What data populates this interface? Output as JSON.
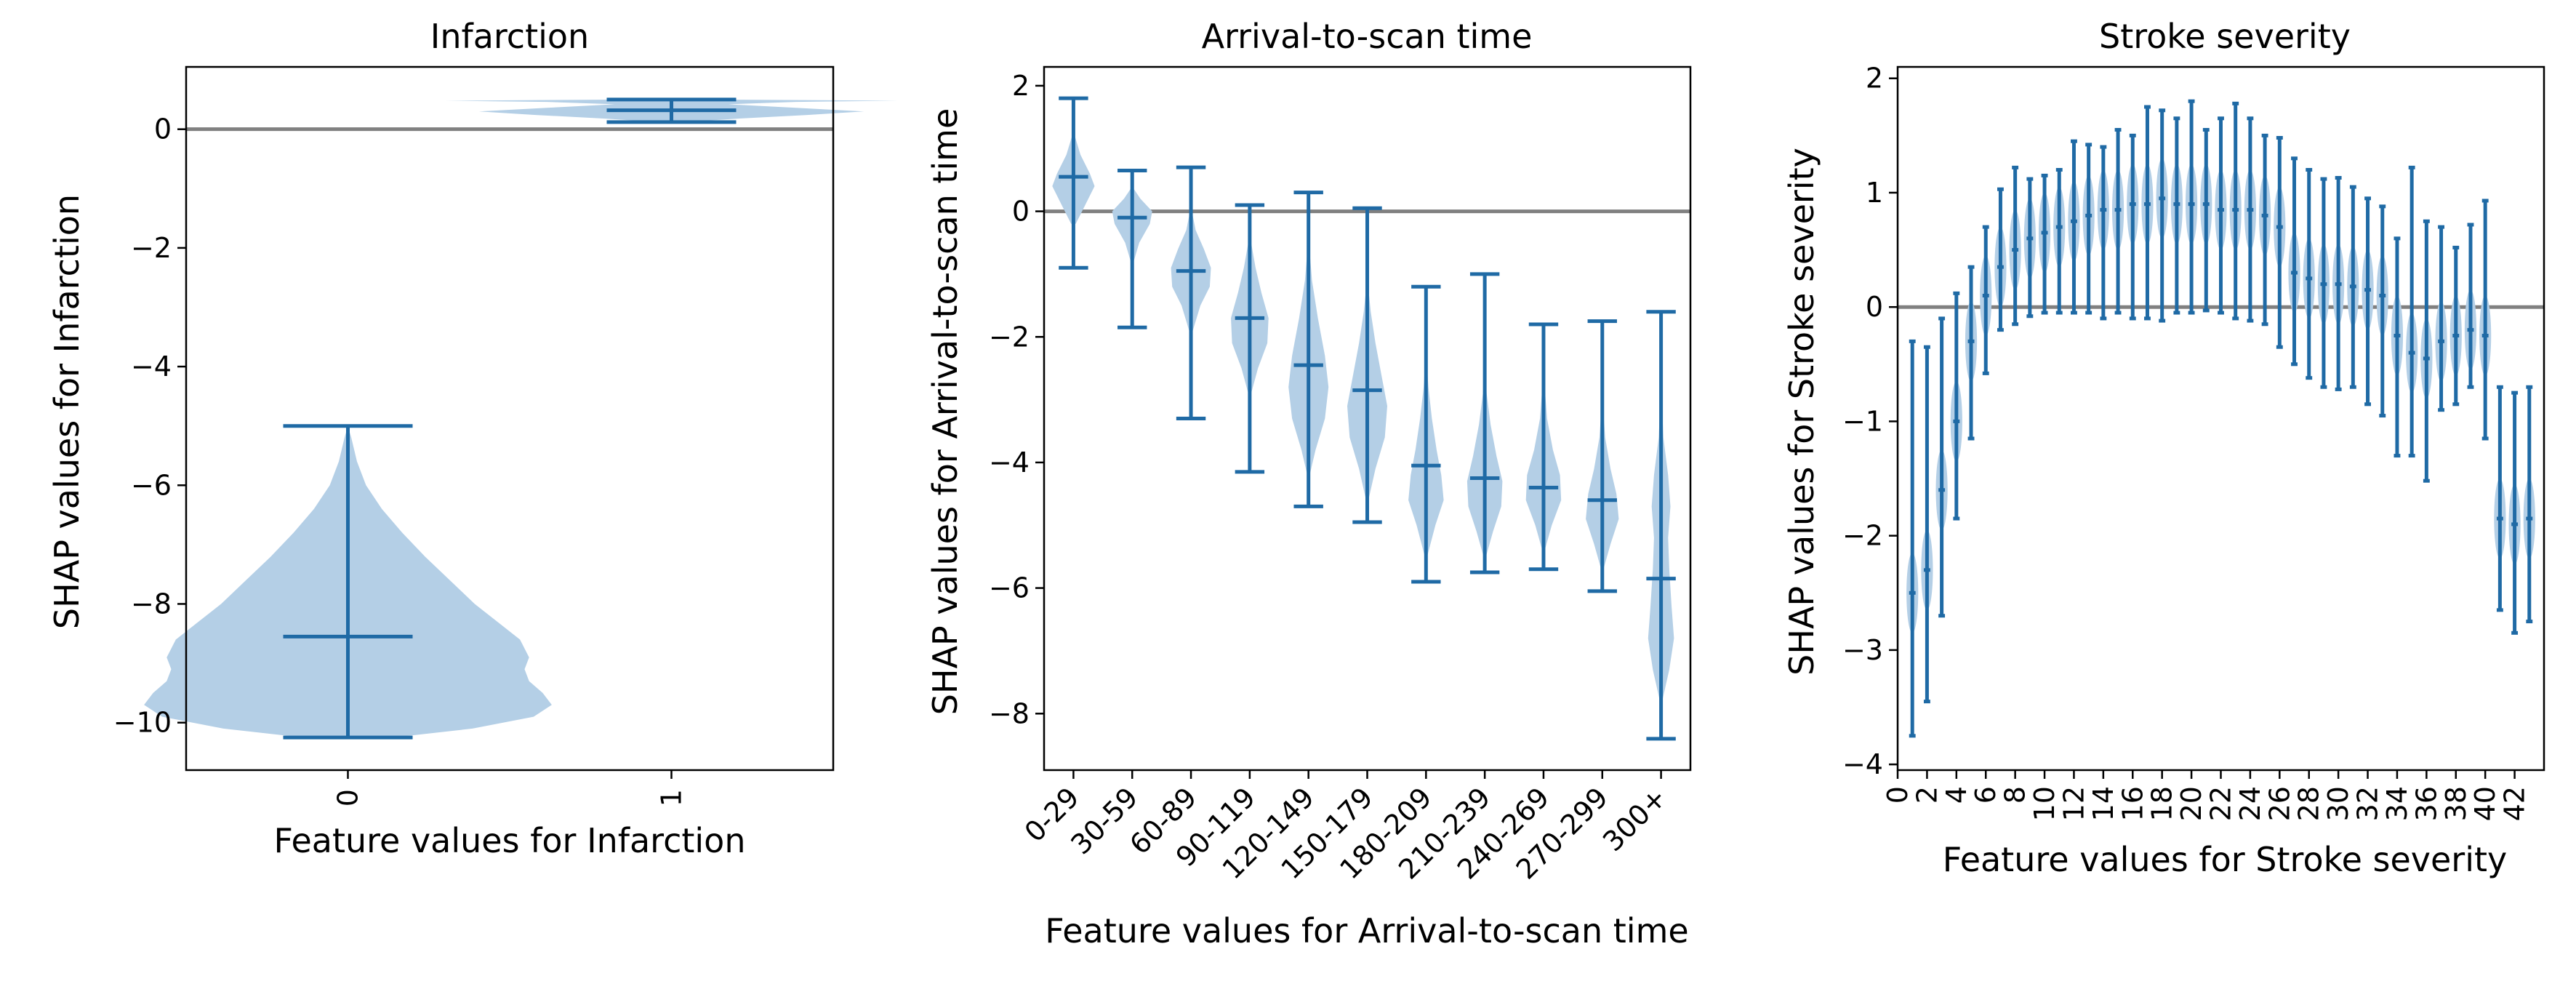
{
  "chart_data": [
    {
      "type": "violin",
      "title": "Infarction",
      "xlabel": "Feature values for Infarction",
      "ylabel": "SHAP values for Infarction",
      "x_categories": [
        "0",
        "1"
      ],
      "ylim": [
        -10.8,
        1.05
      ],
      "yticks": [
        -10,
        -8,
        -6,
        -4,
        -2,
        0
      ],
      "zero_line": true,
      "colors": {
        "body": "#b4cfe6",
        "line": "#1f6aa5",
        "zero": "#808080"
      },
      "violins": [
        {
          "category": "0",
          "min": -10.25,
          "max": -5.0,
          "median": -8.55,
          "profile": [
            [
              -10.25,
              0.2
            ],
            [
              -10.1,
              0.55
            ],
            [
              -9.9,
              0.82
            ],
            [
              -9.7,
              0.9
            ],
            [
              -9.5,
              0.86
            ],
            [
              -9.3,
              0.8
            ],
            [
              -9.1,
              0.78
            ],
            [
              -8.9,
              0.8
            ],
            [
              -8.6,
              0.76
            ],
            [
              -8.3,
              0.66
            ],
            [
              -8.0,
              0.56
            ],
            [
              -7.6,
              0.45
            ],
            [
              -7.2,
              0.34
            ],
            [
              -6.8,
              0.24
            ],
            [
              -6.4,
              0.15
            ],
            [
              -6.0,
              0.08
            ],
            [
              -5.6,
              0.04
            ],
            [
              -5.2,
              0.015
            ],
            [
              -5.0,
              0.0
            ]
          ]
        },
        {
          "category": "1",
          "min": 0.12,
          "max": 0.5,
          "median": 0.32,
          "profile": [
            [
              0.12,
              0.05
            ],
            [
              0.18,
              0.3
            ],
            [
              0.24,
              0.6
            ],
            [
              0.3,
              0.85
            ],
            [
              0.36,
              0.55
            ],
            [
              0.42,
              0.25
            ],
            [
              0.46,
              0.55
            ],
            [
              0.48,
              1.0
            ],
            [
              0.5,
              0.2
            ]
          ]
        }
      ]
    },
    {
      "type": "violin",
      "title": "Arrival-to-scan time",
      "xlabel": "Feature values for Arrival-to-scan time",
      "ylabel": "SHAP values for Arrival-to-scan time",
      "x_categories": [
        "0-29",
        "30-59",
        "60-89",
        "90-119",
        "120-149",
        "150-179",
        "180-209",
        "210-239",
        "240-269",
        "270-299",
        "300+"
      ],
      "ylim": [
        -8.9,
        2.3
      ],
      "yticks": [
        -8,
        -6,
        -4,
        -2,
        0,
        2
      ],
      "zero_line": true,
      "colors": {
        "body": "#b4cfe6",
        "line": "#1f6aa5",
        "zero": "#808080"
      },
      "violins": [
        {
          "category": "0-29",
          "min": -0.9,
          "max": 1.8,
          "median": 0.55,
          "profile": [
            [
              -0.2,
              0.1
            ],
            [
              0.1,
              0.5
            ],
            [
              0.4,
              0.9
            ],
            [
              0.6,
              0.7
            ],
            [
              0.9,
              0.3
            ],
            [
              1.2,
              0.06
            ]
          ]
        },
        {
          "category": "30-59",
          "min": -1.85,
          "max": 0.65,
          "median": -0.1,
          "profile": [
            [
              -0.8,
              0.06
            ],
            [
              -0.5,
              0.3
            ],
            [
              -0.2,
              0.75
            ],
            [
              0.0,
              0.85
            ],
            [
              0.2,
              0.35
            ],
            [
              0.35,
              0.08
            ]
          ]
        },
        {
          "category": "60-89",
          "min": -3.3,
          "max": 0.7,
          "median": -0.95,
          "profile": [
            [
              -1.9,
              0.08
            ],
            [
              -1.5,
              0.4
            ],
            [
              -1.2,
              0.8
            ],
            [
              -0.9,
              0.85
            ],
            [
              -0.6,
              0.55
            ],
            [
              -0.3,
              0.2
            ],
            [
              0.0,
              0.04
            ]
          ]
        },
        {
          "category": "90-119",
          "min": -4.15,
          "max": 0.1,
          "median": -1.7,
          "profile": [
            [
              -2.9,
              0.06
            ],
            [
              -2.5,
              0.35
            ],
            [
              -2.1,
              0.75
            ],
            [
              -1.7,
              0.8
            ],
            [
              -1.3,
              0.5
            ],
            [
              -0.9,
              0.25
            ],
            [
              -0.5,
              0.06
            ]
          ]
        },
        {
          "category": "120-149",
          "min": -4.7,
          "max": 0.3,
          "median": -2.45,
          "profile": [
            [
              -4.2,
              0.05
            ],
            [
              -3.8,
              0.3
            ],
            [
              -3.3,
              0.7
            ],
            [
              -2.8,
              0.85
            ],
            [
              -2.3,
              0.7
            ],
            [
              -1.7,
              0.4
            ],
            [
              -1.1,
              0.15
            ],
            [
              -0.6,
              0.04
            ]
          ]
        },
        {
          "category": "150-179",
          "min": -4.95,
          "max": 0.05,
          "median": -2.85,
          "profile": [
            [
              -4.6,
              0.05
            ],
            [
              -4.1,
              0.35
            ],
            [
              -3.6,
              0.75
            ],
            [
              -3.1,
              0.85
            ],
            [
              -2.6,
              0.6
            ],
            [
              -2.1,
              0.35
            ],
            [
              -1.6,
              0.15
            ],
            [
              -1.2,
              0.04
            ]
          ]
        },
        {
          "category": "180-209",
          "min": -5.9,
          "max": -1.2,
          "median": -4.05,
          "profile": [
            [
              -5.5,
              0.05
            ],
            [
              -5.0,
              0.4
            ],
            [
              -4.6,
              0.75
            ],
            [
              -4.2,
              0.65
            ],
            [
              -3.8,
              0.45
            ],
            [
              -3.3,
              0.25
            ],
            [
              -2.8,
              0.1
            ],
            [
              -2.4,
              0.03
            ]
          ]
        },
        {
          "category": "210-239",
          "min": -5.75,
          "max": -1.0,
          "median": -4.25,
          "profile": [
            [
              -5.5,
              0.05
            ],
            [
              -5.1,
              0.35
            ],
            [
              -4.7,
              0.7
            ],
            [
              -4.3,
              0.75
            ],
            [
              -3.9,
              0.5
            ],
            [
              -3.4,
              0.25
            ],
            [
              -2.9,
              0.08
            ],
            [
              -2.5,
              0.02
            ]
          ]
        },
        {
          "category": "240-269",
          "min": -5.7,
          "max": -1.8,
          "median": -4.4,
          "profile": [
            [
              -5.4,
              0.05
            ],
            [
              -5.0,
              0.35
            ],
            [
              -4.6,
              0.75
            ],
            [
              -4.2,
              0.7
            ],
            [
              -3.8,
              0.4
            ],
            [
              -3.3,
              0.15
            ],
            [
              -2.8,
              0.05
            ]
          ]
        },
        {
          "category": "270-299",
          "min": -6.05,
          "max": -1.75,
          "median": -4.6,
          "profile": [
            [
              -5.7,
              0.05
            ],
            [
              -5.3,
              0.35
            ],
            [
              -4.9,
              0.7
            ],
            [
              -4.5,
              0.6
            ],
            [
              -4.1,
              0.35
            ],
            [
              -3.6,
              0.12
            ],
            [
              -3.1,
              0.03
            ]
          ]
        },
        {
          "category": "300+",
          "min": -8.4,
          "max": -1.6,
          "median": -5.85,
          "profile": [
            [
              -7.8,
              0.05
            ],
            [
              -7.3,
              0.35
            ],
            [
              -6.8,
              0.55
            ],
            [
              -6.3,
              0.45
            ],
            [
              -5.7,
              0.35
            ],
            [
              -5.2,
              0.3
            ],
            [
              -4.7,
              0.4
            ],
            [
              -4.2,
              0.3
            ],
            [
              -3.6,
              0.1
            ],
            [
              -3.0,
              0.03
            ]
          ]
        }
      ]
    },
    {
      "type": "violin",
      "title": "Stroke severity",
      "xlabel": "Feature values for Stroke severity",
      "ylabel": "SHAP values for Stroke severity",
      "x_positions": [
        0,
        1,
        2,
        3,
        4,
        5,
        6,
        7,
        8,
        9,
        10,
        11,
        12,
        13,
        14,
        15,
        16,
        17,
        18,
        19,
        20,
        21,
        22,
        23,
        24,
        25,
        26,
        27,
        28,
        29,
        30,
        31,
        32,
        33,
        34,
        35,
        36,
        37,
        38,
        39,
        40,
        41,
        42,
        43
      ],
      "xticks": [
        "0",
        "2",
        "4",
        "6",
        "8",
        "10",
        "12",
        "14",
        "16",
        "18",
        "20",
        "22",
        "24",
        "26",
        "28",
        "30",
        "32",
        "34",
        "36",
        "38",
        "40",
        "42"
      ],
      "xlim": [
        0,
        44
      ],
      "ylim": [
        -4.05,
        2.1
      ],
      "yticks": [
        -4,
        -3,
        -2,
        -1,
        0,
        1,
        2
      ],
      "zero_line": true,
      "colors": {
        "body": "#b4cfe6",
        "line": "#1f6aa5",
        "zero": "#808080"
      },
      "violins": [
        {
          "x": 1,
          "min": -3.75,
          "max": -0.3,
          "median": -2.5
        },
        {
          "x": 2,
          "min": -3.45,
          "max": -0.35,
          "median": -2.3
        },
        {
          "x": 3,
          "min": -2.7,
          "max": -0.1,
          "median": -1.6
        },
        {
          "x": 4,
          "min": -1.85,
          "max": 0.12,
          "median": -1.0
        },
        {
          "x": 5,
          "min": -1.15,
          "max": 0.35,
          "median": -0.3
        },
        {
          "x": 6,
          "min": -0.58,
          "max": 0.7,
          "median": 0.1
        },
        {
          "x": 7,
          "min": -0.2,
          "max": 1.03,
          "median": 0.35
        },
        {
          "x": 8,
          "min": -0.15,
          "max": 1.22,
          "median": 0.5
        },
        {
          "x": 9,
          "min": -0.08,
          "max": 1.12,
          "median": 0.6
        },
        {
          "x": 10,
          "min": -0.05,
          "max": 1.15,
          "median": 0.65
        },
        {
          "x": 11,
          "min": -0.05,
          "max": 1.2,
          "median": 0.7
        },
        {
          "x": 12,
          "min": -0.05,
          "max": 1.45,
          "median": 0.75
        },
        {
          "x": 13,
          "min": -0.05,
          "max": 1.42,
          "median": 0.8
        },
        {
          "x": 14,
          "min": -0.1,
          "max": 1.4,
          "median": 0.85
        },
        {
          "x": 15,
          "min": -0.05,
          "max": 1.55,
          "median": 0.85
        },
        {
          "x": 16,
          "min": -0.1,
          "max": 1.5,
          "median": 0.9
        },
        {
          "x": 17,
          "min": -0.1,
          "max": 1.75,
          "median": 0.9
        },
        {
          "x": 18,
          "min": -0.12,
          "max": 1.72,
          "median": 0.95
        },
        {
          "x": 19,
          "min": -0.05,
          "max": 1.65,
          "median": 0.9
        },
        {
          "x": 20,
          "min": -0.05,
          "max": 1.8,
          "median": 0.9
        },
        {
          "x": 21,
          "min": -0.03,
          "max": 1.55,
          "median": 0.9
        },
        {
          "x": 22,
          "min": -0.05,
          "max": 1.65,
          "median": 0.85
        },
        {
          "x": 23,
          "min": -0.1,
          "max": 1.78,
          "median": 0.85
        },
        {
          "x": 24,
          "min": -0.12,
          "max": 1.65,
          "median": 0.85
        },
        {
          "x": 25,
          "min": -0.15,
          "max": 1.5,
          "median": 0.8
        },
        {
          "x": 26,
          "min": -0.35,
          "max": 1.48,
          "median": 0.7
        },
        {
          "x": 27,
          "min": -0.5,
          "max": 1.3,
          "median": 0.3
        },
        {
          "x": 28,
          "min": -0.62,
          "max": 1.2,
          "median": 0.25
        },
        {
          "x": 29,
          "min": -0.7,
          "max": 1.12,
          "median": 0.2
        },
        {
          "x": 30,
          "min": -0.72,
          "max": 1.13,
          "median": 0.2
        },
        {
          "x": 31,
          "min": -0.7,
          "max": 1.05,
          "median": 0.18
        },
        {
          "x": 32,
          "min": -0.85,
          "max": 0.95,
          "median": 0.15
        },
        {
          "x": 33,
          "min": -0.95,
          "max": 0.88,
          "median": 0.1
        },
        {
          "x": 34,
          "min": -1.3,
          "max": 0.6,
          "median": -0.25
        },
        {
          "x": 35,
          "min": -1.3,
          "max": 1.22,
          "median": -0.4
        },
        {
          "x": 36,
          "min": -1.52,
          "max": 0.75,
          "median": -0.45
        },
        {
          "x": 37,
          "min": -0.9,
          "max": 0.7,
          "median": -0.3
        },
        {
          "x": 38,
          "min": -0.85,
          "max": 0.52,
          "median": -0.25
        },
        {
          "x": 39,
          "min": -0.7,
          "max": 0.72,
          "median": -0.2
        },
        {
          "x": 40,
          "min": -1.15,
          "max": 0.93,
          "median": -0.25
        },
        {
          "x": 41,
          "min": -2.65,
          "max": -0.7,
          "median": -1.85
        },
        {
          "x": 42,
          "min": -2.85,
          "max": -0.75,
          "median": -1.9
        },
        {
          "x": 43,
          "min": -2.75,
          "max": -0.7,
          "median": -1.85
        }
      ]
    }
  ]
}
